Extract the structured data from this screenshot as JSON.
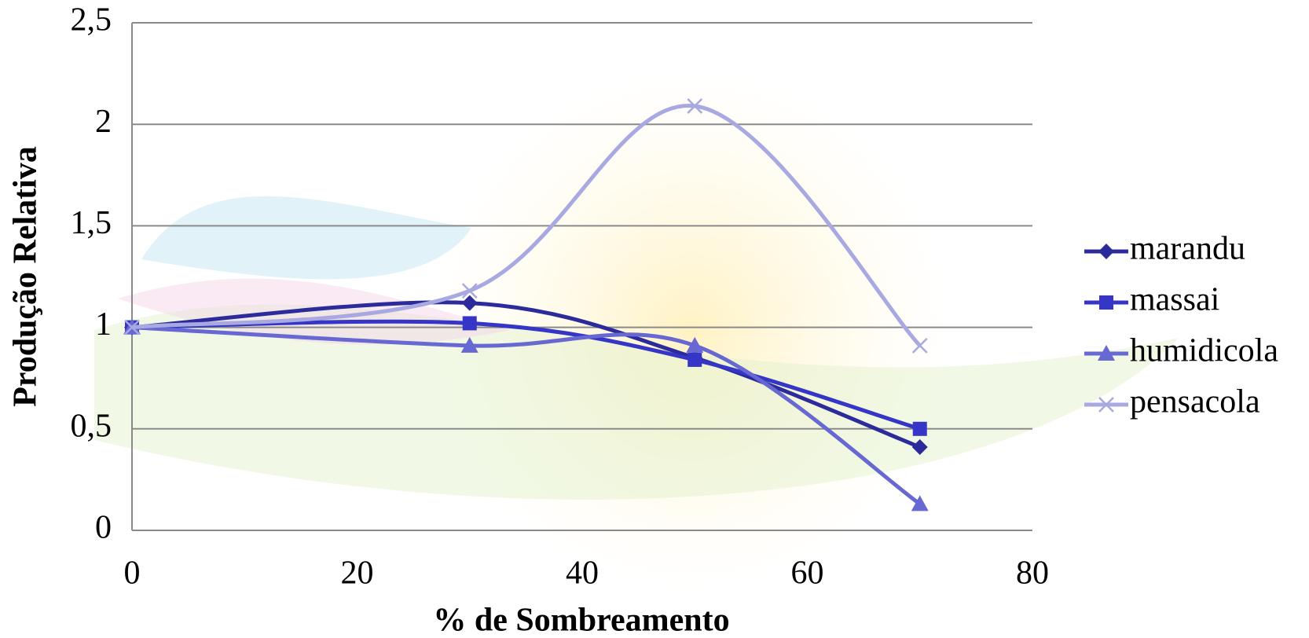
{
  "chart_data": {
    "type": "line",
    "smooth": true,
    "x_label": "% de Sombreamento",
    "y_label": "Produção Relativa",
    "x": [
      0,
      30,
      50,
      70
    ],
    "series": [
      {
        "name": "marandu",
        "color": "#2b2b9c",
        "marker": "diamond",
        "values": [
          1,
          1.12,
          0.85,
          0.41
        ]
      },
      {
        "name": "massai",
        "color": "#3535c8",
        "marker": "square",
        "values": [
          1,
          1.02,
          0.84,
          0.5
        ]
      },
      {
        "name": "humidicola",
        "color": "#6868d2",
        "marker": "triangle",
        "values": [
          1,
          0.91,
          0.91,
          0.13
        ]
      },
      {
        "name": "pensacola",
        "color": "#a9a9e2",
        "marker": "x",
        "values": [
          1,
          1.18,
          2.09,
          0.91
        ]
      }
    ],
    "xlim": [
      0,
      80
    ],
    "xticks": [
      0,
      20,
      40,
      60,
      80
    ],
    "ylim": [
      0,
      2.5
    ],
    "yticks": [
      0,
      {
        "value": 0.5,
        "label": "0,5"
      },
      1,
      {
        "value": 1.5,
        "label": "1,5"
      },
      2,
      {
        "value": 2.5,
        "label": "2,5"
      }
    ],
    "grid": true,
    "legend": "right"
  }
}
